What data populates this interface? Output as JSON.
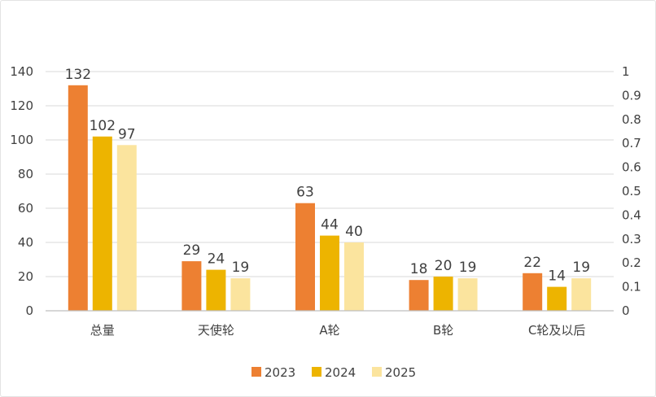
{
  "chart_data": {
    "type": "bar",
    "title": "",
    "xlabel": "",
    "ylabel": "",
    "categories": [
      "总量",
      "天使轮",
      "A轮",
      "B轮",
      "C轮及以后"
    ],
    "series": [
      {
        "name": "2023",
        "values": [
          132,
          29,
          63,
          18,
          22
        ],
        "color": "#ED8032"
      },
      {
        "name": "2024",
        "values": [
          102,
          24,
          44,
          20,
          14
        ],
        "color": "#EDB400"
      },
      {
        "name": "2025",
        "values": [
          97,
          19,
          40,
          19,
          19
        ],
        "color": "#FBE49E"
      }
    ],
    "ylim": [
      0,
      140
    ],
    "yticks": [
      "0",
      "20",
      "40",
      "60",
      "80",
      "100",
      "120",
      "140"
    ],
    "y2lim": [
      0,
      1
    ],
    "y2ticks": [
      "0",
      "0.1",
      "0.2",
      "0.3",
      "0.4",
      "0.5",
      "0.6",
      "0.7",
      "0.8",
      "0.9",
      "1"
    ],
    "grid": true,
    "legend": "bottom",
    "data_labels": true,
    "colors": {
      "grid": "#d9d9d9",
      "axis": "#bfbfbf",
      "text": "#404040"
    }
  }
}
